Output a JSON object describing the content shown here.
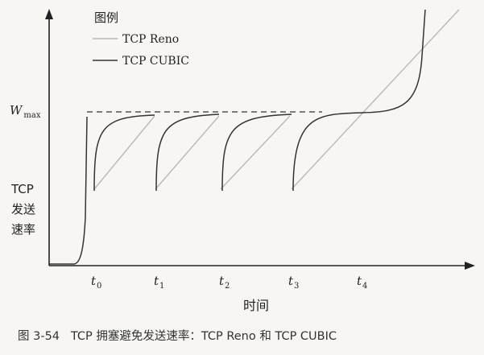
{
  "chart_data": {
    "type": "line",
    "legend_title": "图例",
    "legend_position": "top-left",
    "series": [
      {
        "name": "TCP Reno",
        "color": "#b8b8b8"
      },
      {
        "name": "TCP CUBIC",
        "color": "#333333"
      }
    ],
    "wmax_label": "W",
    "wmax_sub": "max",
    "ylabel_lines": [
      "TCP",
      "发送",
      "速率"
    ],
    "xlabel": "时间",
    "ticks": [
      {
        "base": "t",
        "sub": "0"
      },
      {
        "base": "t",
        "sub": "1"
      },
      {
        "base": "t",
        "sub": "2"
      },
      {
        "base": "t",
        "sub": "3"
      },
      {
        "base": "t",
        "sub": "4"
      }
    ],
    "caption": "图 3-54   TCP 拥塞避免发送速率：TCP Reno 和 TCP CUBIC"
  }
}
